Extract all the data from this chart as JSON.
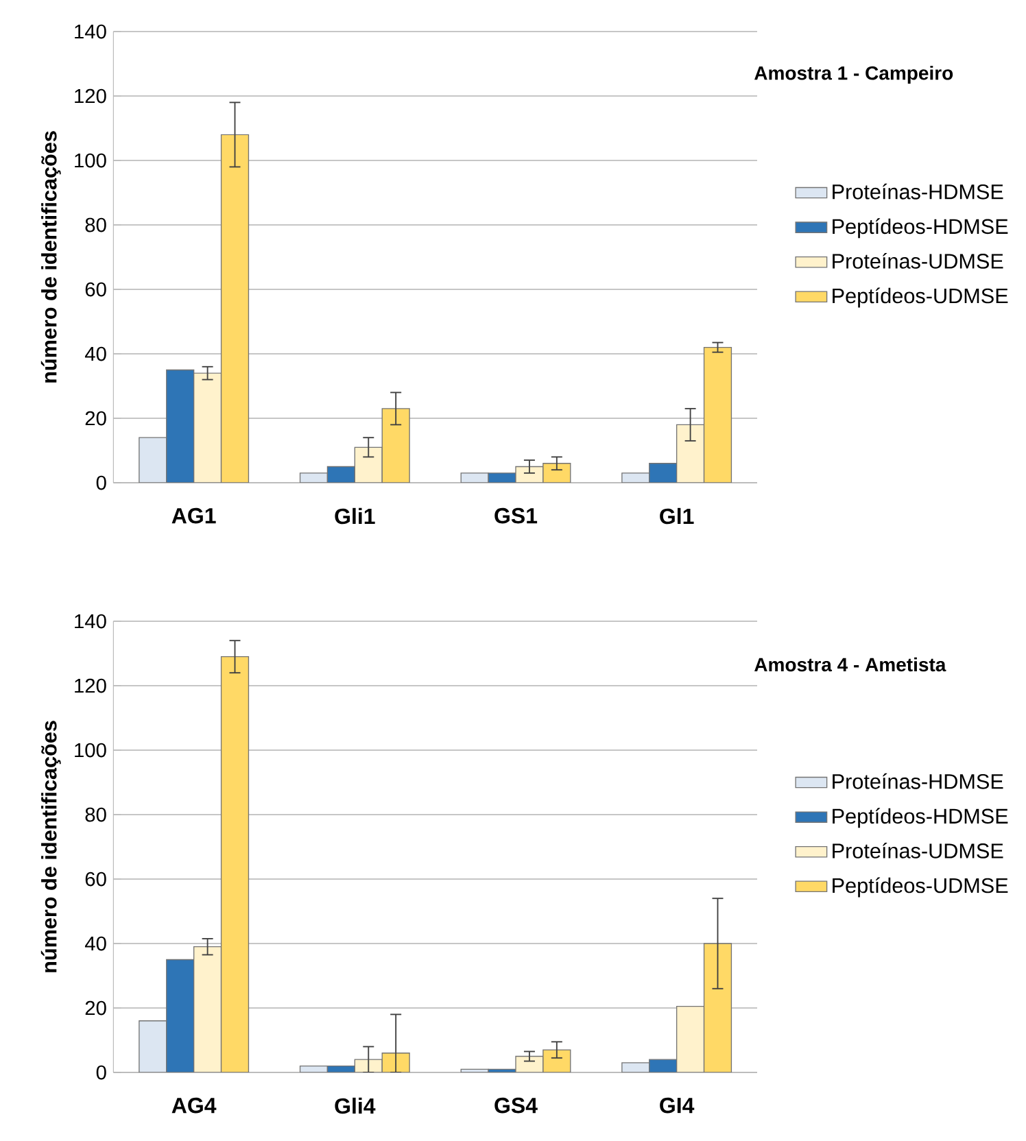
{
  "chart_data": [
    {
      "type": "bar",
      "title": "Amostra 1 - Campeiro",
      "ylabel": "número de  identificações",
      "categories": [
        "AG1",
        "Gli1",
        "GS1",
        "Gl1"
      ],
      "series": [
        {
          "name": "Proteínas-HDMSE",
          "color": "#dce6f2",
          "values": [
            14,
            3,
            3,
            3
          ]
        },
        {
          "name": "Peptídeos-HDMSE",
          "color": "#2e75b6",
          "values": [
            35,
            5,
            3,
            6
          ]
        },
        {
          "name": "Proteínas-UDMSE",
          "color": "#fff2cc",
          "values": [
            34,
            11,
            5,
            18
          ],
          "errors": [
            2,
            3,
            2,
            5
          ]
        },
        {
          "name": "Peptídeos-UDMSE",
          "color": "#ffd966",
          "values": [
            108,
            23,
            6,
            42
          ],
          "errors": [
            10,
            5,
            2,
            1.5
          ]
        }
      ],
      "ylim": [
        0,
        140
      ],
      "yticks": [
        0,
        20,
        40,
        60,
        80,
        100,
        120,
        140
      ],
      "grid": "y",
      "legend": "right"
    },
    {
      "type": "bar",
      "title": "Amostra 4 - Ametista",
      "ylabel": "número de  identificações",
      "categories": [
        "AG4",
        "Gli4",
        "GS4",
        "GI4"
      ],
      "series": [
        {
          "name": "Proteínas-HDMSE",
          "color": "#dce6f2",
          "values": [
            16,
            2,
            1,
            3
          ]
        },
        {
          "name": "Peptídeos-HDMSE",
          "color": "#2e75b6",
          "values": [
            35,
            2,
            1,
            4
          ]
        },
        {
          "name": "Proteínas-UDMSE",
          "color": "#fff2cc",
          "values": [
            39,
            4,
            5,
            20.5
          ],
          "errors": [
            2.5,
            4,
            1.5,
            null
          ]
        },
        {
          "name": "Peptídeos-UDMSE",
          "color": "#ffd966",
          "values": [
            129,
            6,
            7,
            40
          ],
          "errors": [
            5,
            [
              0,
              18
            ],
            2.5,
            14
          ]
        }
      ],
      "ylim": [
        0,
        140
      ],
      "yticks": [
        0,
        20,
        40,
        60,
        80,
        100,
        120,
        140
      ],
      "grid": "y",
      "legend": "right"
    }
  ]
}
